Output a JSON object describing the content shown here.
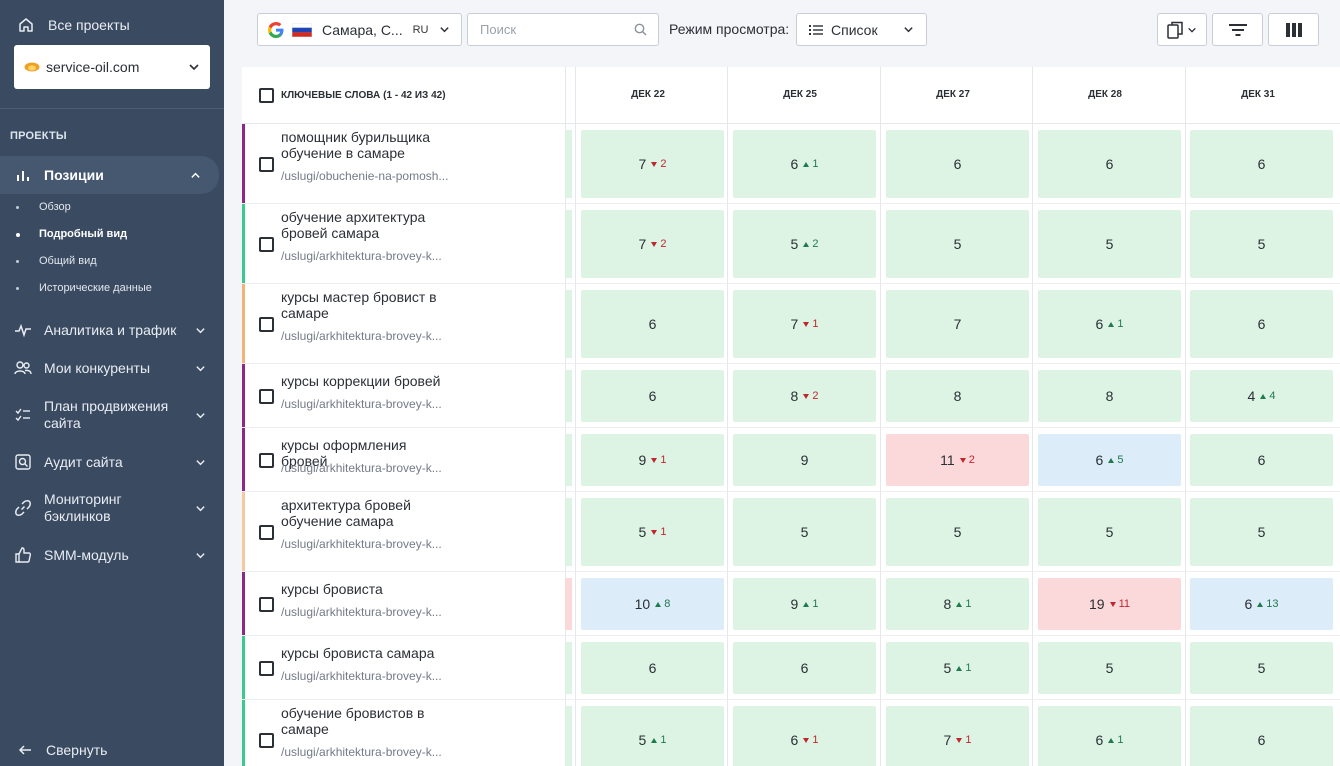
{
  "sidebar": {
    "all_projects": "Все проекты",
    "project": "service-oil.com",
    "section": "ПРОЕКТЫ",
    "positions": "Позиции",
    "sub": [
      "Обзор",
      "Подробный вид",
      "Общий вид",
      "Исторические данные"
    ],
    "selected_sub": "Подробный вид",
    "items": [
      "Аналитика и трафик",
      "Мои конкуренты",
      "План продвижения сайта",
      "Аудит сайта",
      "Мониторинг бэклинков",
      "SMM-модуль"
    ],
    "collapse": "Свернуть"
  },
  "toolbar": {
    "region": "Самара, С...",
    "lang": "RU",
    "search_placeholder": "Поиск",
    "view_label": "Режим просмотра:",
    "view_value": "Список"
  },
  "table": {
    "keywords_header": "КЛЮЧЕВЫЕ СЛОВА",
    "count": "(1 - 42 ИЗ 42)",
    "dates": [
      "ДЕК 22",
      "ДЕК 25",
      "ДЕК 27",
      "ДЕК 28",
      "ДЕК 31"
    ],
    "rows": [
      {
        "keyword": "помощник бурильщика обучение в самаре",
        "url": "/uslugi/obuchenie-na-pomosh...",
        "stripe": "#8a2a86",
        "cells": [
          {
            "v": "7",
            "d": "down",
            "c": "2",
            "bg": "green"
          },
          {
            "v": "6",
            "d": "up",
            "c": "1",
            "bg": "green"
          },
          {
            "v": "6",
            "bg": "green"
          },
          {
            "v": "6",
            "bg": "green"
          },
          {
            "v": "6",
            "bg": "green"
          }
        ]
      },
      {
        "keyword": "обучение архитектура бровей самара",
        "url": "/uslugi/arkhitektura-brovey-k...",
        "stripe": "#3cc98f",
        "cells": [
          {
            "v": "7",
            "d": "down",
            "c": "2",
            "bg": "green"
          },
          {
            "v": "5",
            "d": "up",
            "c": "2",
            "bg": "green"
          },
          {
            "v": "5",
            "bg": "green"
          },
          {
            "v": "5",
            "bg": "green"
          },
          {
            "v": "5",
            "bg": "green"
          }
        ]
      },
      {
        "keyword": "курсы мастер бровист в самаре",
        "url": "/uslugi/arkhitektura-brovey-k...",
        "stripe": "#f2b27a",
        "cells": [
          {
            "v": "6",
            "bg": "green"
          },
          {
            "v": "7",
            "d": "down",
            "c": "1",
            "bg": "green"
          },
          {
            "v": "7",
            "bg": "green"
          },
          {
            "v": "6",
            "d": "up",
            "c": "1",
            "bg": "green"
          },
          {
            "v": "6",
            "bg": "green"
          }
        ]
      },
      {
        "keyword": "курсы коррекции бровей",
        "url": "/uslugi/arkhitektura-brovey-k...",
        "stripe": "#8a2a86",
        "cells": [
          {
            "v": "6",
            "bg": "green"
          },
          {
            "v": "8",
            "d": "down",
            "c": "2",
            "bg": "green"
          },
          {
            "v": "8",
            "bg": "green"
          },
          {
            "v": "8",
            "bg": "green"
          },
          {
            "v": "4",
            "d": "up",
            "c": "4",
            "bg": "green"
          }
        ]
      },
      {
        "keyword": "курсы оформления бровей",
        "url": "/uslugi/arkhitektura-brovey-k...",
        "stripe": "#8a2a86",
        "cells": [
          {
            "v": "9",
            "d": "down",
            "c": "1",
            "bg": "green"
          },
          {
            "v": "9",
            "bg": "green"
          },
          {
            "v": "11",
            "d": "down",
            "c": "2",
            "bg": "red"
          },
          {
            "v": "6",
            "d": "up",
            "c": "5",
            "bg": "blue"
          },
          {
            "v": "6",
            "bg": "green"
          }
        ]
      },
      {
        "keyword": "архитектура бровей обучение самара",
        "url": "/uslugi/arkhitektura-brovey-k...",
        "stripe": "#f2c9a0",
        "cells": [
          {
            "v": "5",
            "d": "down",
            "c": "1",
            "bg": "green"
          },
          {
            "v": "5",
            "bg": "green"
          },
          {
            "v": "5",
            "bg": "green"
          },
          {
            "v": "5",
            "bg": "green"
          },
          {
            "v": "5",
            "bg": "green"
          }
        ]
      },
      {
        "keyword": "курсы бровиста",
        "url": "/uslugi/arkhitektura-brovey-k...",
        "stripe": "#8a2a86",
        "cells": [
          {
            "v": "10",
            "d": "up",
            "c": "8",
            "bg": "blue"
          },
          {
            "v": "9",
            "d": "up",
            "c": "1",
            "bg": "green"
          },
          {
            "v": "8",
            "d": "up",
            "c": "1",
            "bg": "green"
          },
          {
            "v": "19",
            "d": "down",
            "c": "11",
            "bg": "red"
          },
          {
            "v": "6",
            "d": "up",
            "c": "13",
            "bg": "blue"
          }
        ]
      },
      {
        "keyword": "курсы бровиста самара",
        "url": "/uslugi/arkhitektura-brovey-k...",
        "stripe": "#3cc98f",
        "cells": [
          {
            "v": "6",
            "bg": "green"
          },
          {
            "v": "6",
            "bg": "green"
          },
          {
            "v": "5",
            "d": "up",
            "c": "1",
            "bg": "green"
          },
          {
            "v": "5",
            "bg": "green"
          },
          {
            "v": "5",
            "bg": "green"
          }
        ]
      },
      {
        "keyword": "обучение бровистов в самаре",
        "url": "/uslugi/arkhitektura-brovey-k...",
        "stripe": "#3cc98f",
        "cells": [
          {
            "v": "5",
            "d": "up",
            "c": "1",
            "bg": "green"
          },
          {
            "v": "6",
            "d": "down",
            "c": "1",
            "bg": "green"
          },
          {
            "v": "7",
            "d": "down",
            "c": "1",
            "bg": "green"
          },
          {
            "v": "6",
            "d": "up",
            "c": "1",
            "bg": "green"
          },
          {
            "v": "6",
            "bg": "green"
          }
        ]
      }
    ]
  },
  "colors": {
    "green": "#ddf4e5",
    "red": "#fbd9da",
    "blue": "#dcecf9",
    "up": "#1f7a4c",
    "down": "#c0262d"
  }
}
